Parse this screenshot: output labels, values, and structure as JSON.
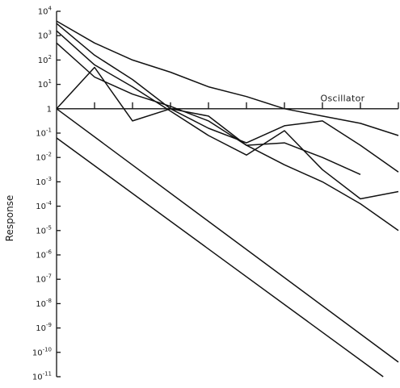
{
  "chart_data": {
    "type": "line",
    "ylabel": "Response",
    "xlabel": "",
    "y_scale": "log",
    "ylim_log10": [
      -11,
      4
    ],
    "y_ticks_log10": [
      4,
      3,
      2,
      1,
      0,
      -1,
      -2,
      -3,
      -4,
      -5,
      -6,
      -7,
      -8,
      -9,
      -10,
      -11
    ],
    "y_tick_labels": [
      {
        "base": "10",
        "exp": "4"
      },
      {
        "base": "10",
        "exp": "3"
      },
      {
        "base": "10",
        "exp": "2"
      },
      {
        "base": "10",
        "exp": "1"
      },
      {
        "base": "1",
        "exp": ""
      },
      {
        "base": "10",
        "exp": "-1"
      },
      {
        "base": "10",
        "exp": "-2"
      },
      {
        "base": "10",
        "exp": "-3"
      },
      {
        "base": "10",
        "exp": "-4"
      },
      {
        "base": "10",
        "exp": "-5"
      },
      {
        "base": "10",
        "exp": "-6"
      },
      {
        "base": "10",
        "exp": "-7"
      },
      {
        "base": "10",
        "exp": "-8"
      },
      {
        "base": "10",
        "exp": "-9"
      },
      {
        "base": "10",
        "exp": "-10"
      },
      {
        "base": "10",
        "exp": "-11"
      }
    ],
    "x_ticks": [
      1,
      2,
      3,
      4,
      5,
      6,
      7,
      8,
      9
    ],
    "xlim": [
      0,
      9
    ],
    "annotation": {
      "text": "Oscillator",
      "x": 7.0,
      "y_log10": 0.3
    },
    "series": [
      {
        "x": [
          0,
          1,
          2,
          3,
          4,
          5,
          6,
          7,
          8,
          9
        ],
        "y_log10": [
          3.6,
          2.7,
          2.0,
          1.5,
          0.9,
          0.5,
          0.0,
          -0.3,
          -0.6,
          -1.1
        ]
      },
      {
        "x": [
          0,
          1,
          2,
          3,
          4,
          5,
          6,
          7,
          8,
          9
        ],
        "y_log10": [
          3.5,
          2.2,
          1.2,
          0.0,
          -0.8,
          -1.4,
          -0.7,
          -0.5,
          -1.5,
          -2.6
        ]
      },
      {
        "x": [
          0,
          1,
          2,
          3,
          4,
          5,
          6,
          7,
          8,
          9
        ],
        "y_log10": [
          3.2,
          1.8,
          0.9,
          -0.1,
          -1.1,
          -1.9,
          -0.9,
          -2.5,
          -3.7,
          -3.4
        ]
      },
      {
        "x": [
          0,
          1,
          2,
          3,
          4,
          5,
          6,
          7,
          8,
          9
        ],
        "y_log10": [
          2.7,
          1.3,
          0.6,
          0.1,
          -0.5,
          -1.5,
          -2.3,
          -3.0,
          -3.9,
          -5.0
        ]
      },
      {
        "x": [
          0,
          1,
          2,
          3,
          4,
          5,
          6,
          7,
          8
        ],
        "y_log10": [
          0.0,
          1.7,
          -0.5,
          0.0,
          -0.3,
          -1.5,
          -1.4,
          -2.0,
          -2.7
        ]
      },
      {
        "x": [
          0,
          9
        ],
        "y_log10": [
          0.0,
          -10.4
        ]
      },
      {
        "x": [
          0,
          8.6
        ],
        "y_log10": [
          -1.2,
          -11.0
        ]
      }
    ]
  }
}
